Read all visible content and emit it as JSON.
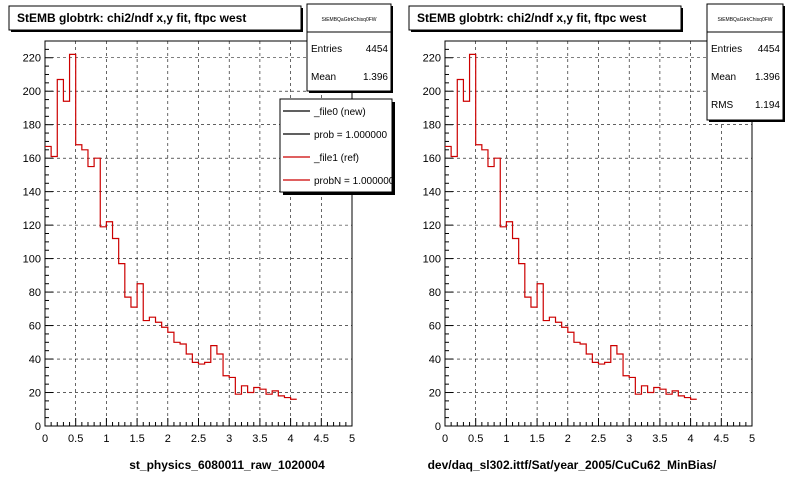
{
  "chart_data": [
    {
      "type": "line",
      "title": "StEMB globtrk: chi2/ndf x,y fit, ftpc west",
      "xlabel": "st_physics_6080011_raw_1020004",
      "ylabel": "",
      "xlim": [
        0,
        5
      ],
      "ylim": [
        0,
        230
      ],
      "grid": true,
      "x_ticks": [
        "0",
        "0.5",
        "1",
        "1.5",
        "2",
        "2.5",
        "3",
        "3.5",
        "4",
        "4.5",
        "5"
      ],
      "y_ticks": [
        "0",
        "20",
        "40",
        "60",
        "80",
        "100",
        "120",
        "140",
        "160",
        "180",
        "200",
        "220"
      ],
      "bin_width": 0.1,
      "series": [
        {
          "name": "_file1 (ref)",
          "color": "#cc0000",
          "values": [
            167,
            161,
            207,
            194,
            222,
            168,
            165,
            155,
            160,
            119,
            122,
            112,
            97,
            77,
            71,
            85,
            63,
            65,
            62,
            59,
            56,
            50,
            49,
            43,
            38,
            37,
            38,
            48,
            43,
            30,
            29,
            19,
            24,
            20,
            23,
            22,
            19,
            21,
            18,
            17,
            16
          ]
        }
      ],
      "stats": {
        "name": "StEMBQaGtrkChisq0FW",
        "rows": [
          {
            "label": "Entries",
            "value": "4454"
          },
          {
            "label": "Mean",
            "value": "1.396"
          }
        ]
      },
      "legend": {
        "position": "top-right",
        "entries": [
          {
            "label": "_file0 (new)",
            "color": "#000000"
          },
          {
            "label": "prob = 1.000000",
            "color": "#000000"
          },
          {
            "label": "_file1 (ref)",
            "color": "#cc0000"
          },
          {
            "label": "probN = 1.000000",
            "color": "#cc0000"
          }
        ]
      }
    },
    {
      "type": "line",
      "title": "StEMB globtrk: chi2/ndf x,y fit, ftpc west",
      "xlabel": "dev/daq_sl302.ittf/Sat/year_2005/CuCu62_MinBias/",
      "ylabel": "",
      "xlim": [
        0,
        5
      ],
      "ylim": [
        0,
        230
      ],
      "grid": true,
      "x_ticks": [
        "0",
        "0.5",
        "1",
        "1.5",
        "2",
        "2.5",
        "3",
        "3.5",
        "4",
        "4.5",
        "5"
      ],
      "y_ticks": [
        "0",
        "20",
        "40",
        "60",
        "80",
        "100",
        "120",
        "140",
        "160",
        "180",
        "200",
        "220"
      ],
      "bin_width": 0.1,
      "series": [
        {
          "color": "#cc0000",
          "values": [
            167,
            161,
            207,
            194,
            222,
            168,
            165,
            155,
            160,
            119,
            122,
            112,
            97,
            77,
            71,
            85,
            63,
            65,
            62,
            59,
            56,
            50,
            49,
            43,
            38,
            37,
            38,
            48,
            43,
            30,
            29,
            19,
            24,
            20,
            23,
            22,
            19,
            21,
            18,
            17,
            16
          ]
        }
      ],
      "stats": {
        "name": "StEMBQaGtrkChisq0FW",
        "rows": [
          {
            "label": "Entries",
            "value": "4454"
          },
          {
            "label": "Mean",
            "value": "1.396"
          },
          {
            "label": "RMS",
            "value": "1.194"
          }
        ]
      }
    }
  ]
}
